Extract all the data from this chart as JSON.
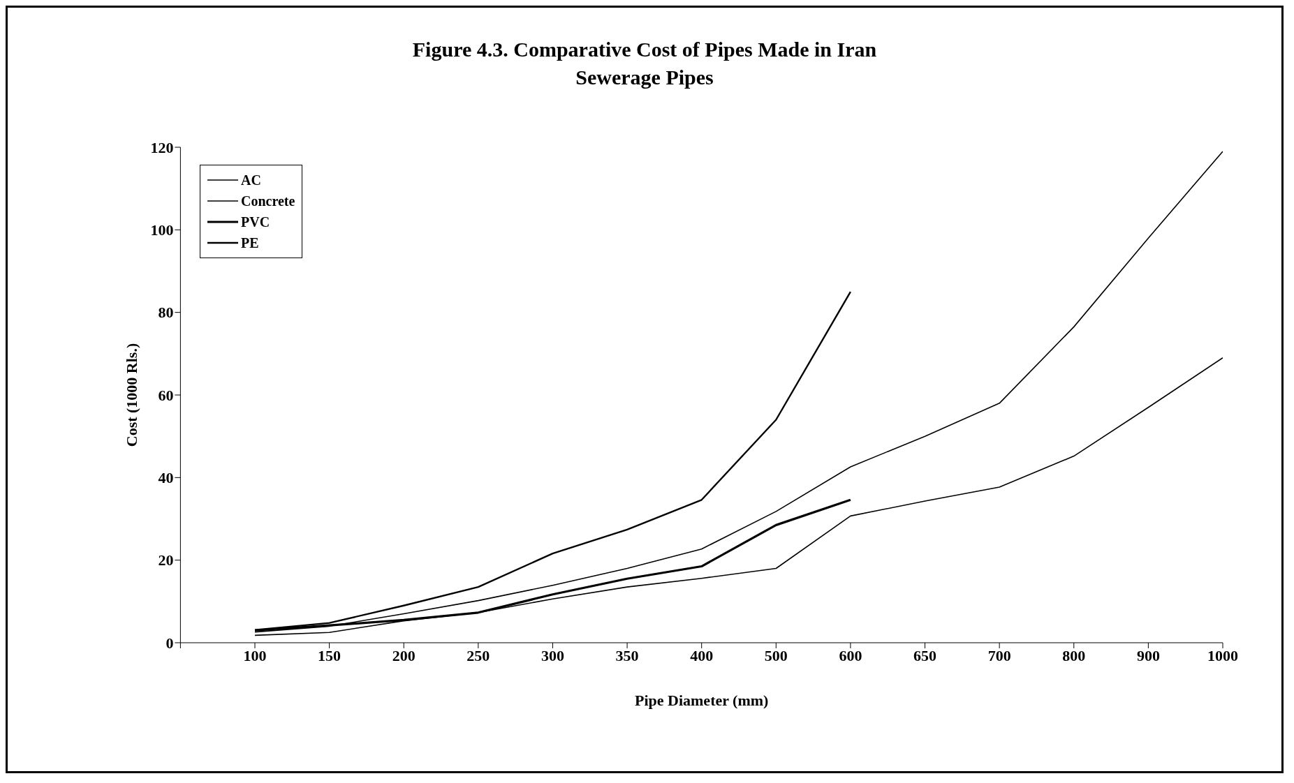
{
  "chart_data": {
    "type": "line",
    "title": "Figure 4.3. Comparative Cost of Pipes Made in Iran",
    "subtitle": "Sewerage Pipes",
    "xlabel": "Pipe Diameter (mm)",
    "ylabel": "Cost (1000 Rls.)",
    "categories": [
      null,
      "100",
      "150",
      "200",
      "250",
      "300",
      "350",
      "400",
      "500",
      "600",
      "650",
      "700",
      "800",
      "900",
      "1000"
    ],
    "series": [
      {
        "name": "AC",
        "color": "#000000",
        "values": [
          null,
          1.8,
          2.5,
          5.3,
          7.3,
          10.6,
          13.5,
          15.6,
          18,
          30.7,
          34.3,
          37.7,
          45.2,
          57,
          69
        ]
      },
      {
        "name": "Concrete",
        "color": "#000000",
        "values": [
          null,
          2.6,
          4,
          7,
          10.2,
          13.9,
          18,
          22.7,
          31.8,
          42.6,
          50,
          58,
          76.5,
          98,
          119
        ]
      },
      {
        "name": "PVC",
        "color": "#000000",
        "values": [
          null,
          3,
          4.2,
          5.5,
          7.3,
          11.7,
          15.5,
          18.5,
          28.5,
          34.6,
          null,
          null,
          null,
          null,
          null
        ]
      },
      {
        "name": "PE",
        "color": "#000000",
        "values": [
          null,
          3.1,
          4.8,
          9,
          13.5,
          21.6,
          27.4,
          34.6,
          54,
          85,
          null,
          null,
          null,
          null,
          null
        ]
      }
    ],
    "ylim": [
      0,
      120
    ],
    "yticks": [
      0,
      20,
      40,
      60,
      80,
      100,
      120
    ],
    "grid": false,
    "legend": "top left",
    "marker": "none",
    "line_style": "solid"
  }
}
